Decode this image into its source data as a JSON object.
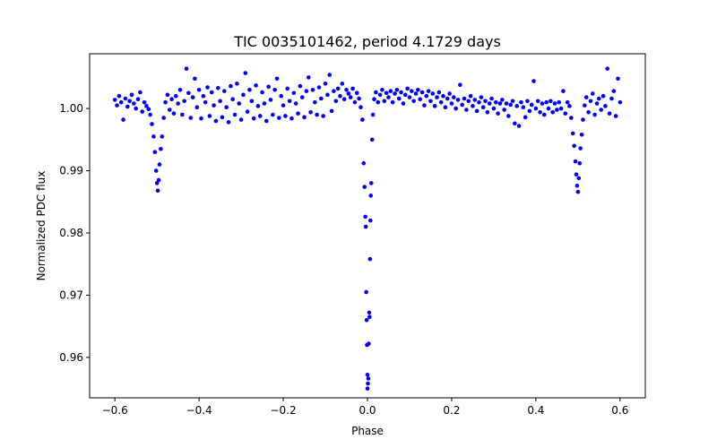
{
  "chart_data": {
    "type": "scatter",
    "title": "TIC 0035101462, period 4.1729 days",
    "xlabel": "Phase",
    "ylabel": "Normalized PDC flux",
    "xlim": [
      -0.66,
      0.66
    ],
    "ylim": [
      0.9535,
      1.0088
    ],
    "xticks": [
      -0.6,
      -0.4,
      -0.2,
      0.0,
      0.2,
      0.4,
      0.6
    ],
    "xtick_labels": [
      "−0.6",
      "−0.4",
      "−0.2",
      "0.0",
      "0.2",
      "0.4",
      "0.6"
    ],
    "yticks": [
      0.96,
      0.97,
      0.98,
      0.99,
      1.0
    ],
    "ytick_labels": [
      "0.96",
      "0.97",
      "0.98",
      "0.99",
      "1.00"
    ],
    "grid": false,
    "marker_color": "#0000ff",
    "series": [
      {
        "name": "PDC flux",
        "points": [
          [
            -0.6,
            1.0014
          ],
          [
            -0.595,
            1.0005
          ],
          [
            -0.59,
            1.002
          ],
          [
            -0.585,
            1.001
          ],
          [
            -0.58,
            0.9982
          ],
          [
            -0.575,
            1.0016
          ],
          [
            -0.57,
            1.0003
          ],
          [
            -0.565,
            1.0012
          ],
          [
            -0.56,
            1.0022
          ],
          [
            -0.555,
            1.0008
          ],
          [
            -0.55,
            1.0
          ],
          [
            -0.545,
            1.0015
          ],
          [
            -0.54,
            1.0026
          ],
          [
            -0.535,
            0.9995
          ],
          [
            -0.53,
            1.001
          ],
          [
            -0.525,
            1.0004
          ],
          [
            -0.52,
            0.9999
          ],
          [
            -0.516,
            0.999
          ],
          [
            -0.512,
            0.9975
          ],
          [
            -0.508,
            0.9955
          ],
          [
            -0.505,
            0.993
          ],
          [
            -0.502,
            0.99
          ],
          [
            -0.5,
            0.988
          ],
          [
            -0.498,
            0.9868
          ],
          [
            -0.496,
            0.9885
          ],
          [
            -0.494,
            0.991
          ],
          [
            -0.491,
            0.9935
          ],
          [
            -0.488,
            0.9955
          ],
          [
            -0.484,
            0.9985
          ],
          [
            -0.48,
            1.001
          ],
          [
            -0.475,
            1.0022
          ],
          [
            -0.47,
            0.9998
          ],
          [
            -0.465,
            1.0015
          ],
          [
            -0.46,
            0.9992
          ],
          [
            -0.455,
            1.002
          ],
          [
            -0.45,
            1.0008
          ],
          [
            -0.445,
            1.003
          ],
          [
            -0.44,
            0.999
          ],
          [
            -0.435,
            1.0012
          ],
          [
            -0.43,
            1.0064
          ],
          [
            -0.425,
            1.0025
          ],
          [
            -0.42,
            0.9985
          ],
          [
            -0.415,
            1.0018
          ],
          [
            -0.41,
            1.0048
          ],
          [
            -0.405,
            1.0002
          ],
          [
            -0.4,
            1.003
          ],
          [
            -0.395,
            0.9984
          ],
          [
            -0.39,
            1.002
          ],
          [
            -0.385,
            1.001
          ],
          [
            -0.38,
            1.0034
          ],
          [
            -0.375,
            0.9988
          ],
          [
            -0.37,
            1.0026
          ],
          [
            -0.365,
            1.0005
          ],
          [
            -0.36,
            0.998
          ],
          [
            -0.355,
            1.0033
          ],
          [
            -0.35,
            1.0012
          ],
          [
            -0.345,
            0.9986
          ],
          [
            -0.34,
            1.0028
          ],
          [
            -0.335,
            1.0002
          ],
          [
            -0.33,
            0.9978
          ],
          [
            -0.325,
            1.0036
          ],
          [
            -0.32,
            1.0015
          ],
          [
            -0.315,
            0.999
          ],
          [
            -0.31,
            1.004
          ],
          [
            -0.305,
            1.0008
          ],
          [
            -0.3,
            0.9982
          ],
          [
            -0.295,
            1.0022
          ],
          [
            -0.29,
            1.0057
          ],
          [
            -0.285,
            0.9995
          ],
          [
            -0.28,
            1.003
          ],
          [
            -0.275,
            1.0012
          ],
          [
            -0.27,
            0.9984
          ],
          [
            -0.265,
            1.0037
          ],
          [
            -0.26,
            1.0004
          ],
          [
            -0.255,
            0.9988
          ],
          [
            -0.25,
            1.0026
          ],
          [
            -0.245,
            1.0008
          ],
          [
            -0.24,
            0.998
          ],
          [
            -0.235,
            1.0035
          ],
          [
            -0.23,
            1.0014
          ],
          [
            -0.225,
            0.999
          ],
          [
            -0.22,
            1.003
          ],
          [
            -0.215,
            1.0048
          ],
          [
            -0.21,
            0.9985
          ],
          [
            -0.205,
            1.002
          ],
          [
            -0.2,
            1.0005
          ],
          [
            -0.195,
            0.9988
          ],
          [
            -0.19,
            1.0032
          ],
          [
            -0.185,
            1.0012
          ],
          [
            -0.18,
            0.9984
          ],
          [
            -0.175,
            1.0025
          ],
          [
            -0.17,
            1.0008
          ],
          [
            -0.165,
            0.9992
          ],
          [
            -0.16,
            1.0036
          ],
          [
            -0.155,
            1.0018
          ],
          [
            -0.15,
            0.9986
          ],
          [
            -0.145,
            1.0028
          ],
          [
            -0.14,
            1.005
          ],
          [
            -0.135,
            0.9994
          ],
          [
            -0.13,
            1.003
          ],
          [
            -0.125,
            1.001
          ],
          [
            -0.12,
            0.999
          ],
          [
            -0.115,
            1.0034
          ],
          [
            -0.11,
            1.0016
          ],
          [
            -0.105,
            0.9988
          ],
          [
            -0.1,
            1.004
          ],
          [
            -0.095,
            1.0022
          ],
          [
            -0.09,
            1.0054
          ],
          [
            -0.085,
            0.9996
          ],
          [
            -0.08,
            1.0028
          ],
          [
            -0.075,
            1.0012
          ],
          [
            -0.07,
            1.0032
          ],
          [
            -0.065,
            1.002
          ],
          [
            -0.06,
            1.004
          ],
          [
            -0.055,
            1.0015
          ],
          [
            -0.05,
            1.003
          ],
          [
            -0.045,
            1.0024
          ],
          [
            -0.04,
            1.0018
          ],
          [
            -0.035,
            1.0032
          ],
          [
            -0.03,
            1.001
          ],
          [
            -0.025,
            1.0025
          ],
          [
            -0.02,
            1.0016
          ],
          [
            -0.016,
            1.0002
          ],
          [
            -0.012,
            0.9982
          ],
          [
            -0.009,
            0.9912
          ],
          [
            -0.007,
            0.9874
          ],
          [
            -0.005,
            0.9826
          ],
          [
            -0.004,
            0.981
          ],
          [
            -0.003,
            0.9705
          ],
          [
            -0.002,
            0.966
          ],
          [
            -0.001,
            0.962
          ],
          [
            0.0,
            0.9572
          ],
          [
            0.0,
            0.955
          ],
          [
            0.001,
            0.9558
          ],
          [
            0.002,
            0.9566
          ],
          [
            0.003,
            0.9622
          ],
          [
            0.004,
            0.9672
          ],
          [
            0.005,
            0.9665
          ],
          [
            0.006,
            0.9758
          ],
          [
            0.007,
            0.982
          ],
          [
            0.008,
            0.986
          ],
          [
            0.009,
            0.988
          ],
          [
            0.011,
            0.995
          ],
          [
            0.013,
            0.999
          ],
          [
            0.016,
            1.0015
          ],
          [
            0.02,
            1.0026
          ],
          [
            0.025,
            1.001
          ],
          [
            0.03,
            1.0022
          ],
          [
            0.035,
            1.003
          ],
          [
            0.04,
            1.0012
          ],
          [
            0.045,
            1.0025
          ],
          [
            0.05,
            1.0018
          ],
          [
            0.055,
            1.0028
          ],
          [
            0.06,
            1.001
          ],
          [
            0.065,
            1.0024
          ],
          [
            0.07,
            1.003
          ],
          [
            0.075,
            1.0016
          ],
          [
            0.08,
            1.0026
          ],
          [
            0.085,
            1.0008
          ],
          [
            0.09,
            1.0022
          ],
          [
            0.095,
            1.0032
          ],
          [
            0.1,
            1.0018
          ],
          [
            0.105,
            1.0028
          ],
          [
            0.11,
            1.0012
          ],
          [
            0.115,
            1.0024
          ],
          [
            0.12,
            1.003
          ],
          [
            0.125,
            1.0015
          ],
          [
            0.13,
            1.0026
          ],
          [
            0.135,
            1.0005
          ],
          [
            0.14,
            1.002
          ],
          [
            0.145,
            1.0028
          ],
          [
            0.15,
            1.0012
          ],
          [
            0.155,
            1.0024
          ],
          [
            0.16,
            1.0004
          ],
          [
            0.165,
            1.0018
          ],
          [
            0.17,
            1.0026
          ],
          [
            0.175,
            1.001
          ],
          [
            0.18,
            1.002
          ],
          [
            0.185,
            1.0002
          ],
          [
            0.19,
            1.0016
          ],
          [
            0.195,
            1.0024
          ],
          [
            0.2,
            1.0008
          ],
          [
            0.205,
            1.0018
          ],
          [
            0.21,
            1.0
          ],
          [
            0.215,
            1.0014
          ],
          [
            0.22,
            1.0038
          ],
          [
            0.225,
            1.0006
          ],
          [
            0.23,
            1.0016
          ],
          [
            0.235,
            0.9998
          ],
          [
            0.24,
            1.0012
          ],
          [
            0.245,
            1.002
          ],
          [
            0.25,
            1.0004
          ],
          [
            0.255,
            1.0014
          ],
          [
            0.26,
            0.9996
          ],
          [
            0.265,
            1.001
          ],
          [
            0.27,
            1.0018
          ],
          [
            0.275,
            1.0002
          ],
          [
            0.28,
            1.0012
          ],
          [
            0.285,
            0.9994
          ],
          [
            0.29,
            1.0008
          ],
          [
            0.295,
            1.0016
          ],
          [
            0.3,
            1.0
          ],
          [
            0.305,
            1.001
          ],
          [
            0.31,
            0.9992
          ],
          [
            0.315,
            1.0008
          ],
          [
            0.32,
            1.0014
          ],
          [
            0.325,
            0.9998
          ],
          [
            0.33,
            1.0008
          ],
          [
            0.335,
            0.9988
          ],
          [
            0.34,
            1.0006
          ],
          [
            0.345,
            1.0012
          ],
          [
            0.35,
            0.9976
          ],
          [
            0.355,
            1.0004
          ],
          [
            0.36,
            0.9972
          ],
          [
            0.365,
            1.001
          ],
          [
            0.37,
            1.0002
          ],
          [
            0.375,
            0.9986
          ],
          [
            0.38,
            1.0012
          ],
          [
            0.385,
            0.9996
          ],
          [
            0.39,
            1.0006
          ],
          [
            0.395,
            1.0044
          ],
          [
            0.4,
            1.0
          ],
          [
            0.405,
            1.0012
          ],
          [
            0.41,
            0.9994
          ],
          [
            0.415,
            1.0008
          ],
          [
            0.42,
            0.999
          ],
          [
            0.425,
            1.001
          ],
          [
            0.43,
            1.0
          ],
          [
            0.435,
            1.0012
          ],
          [
            0.44,
            0.9994
          ],
          [
            0.445,
            1.0008
          ],
          [
            0.45,
            0.9998
          ],
          [
            0.455,
            1.001
          ],
          [
            0.46,
            1.0
          ],
          [
            0.465,
            1.0028
          ],
          [
            0.47,
            0.9992
          ],
          [
            0.475,
            1.001
          ],
          [
            0.48,
            1.0004
          ],
          [
            0.484,
            0.9985
          ],
          [
            0.488,
            0.996
          ],
          [
            0.491,
            0.994
          ],
          [
            0.494,
            0.9915
          ],
          [
            0.496,
            0.9894
          ],
          [
            0.498,
            0.9876
          ],
          [
            0.5,
            0.9866
          ],
          [
            0.502,
            0.9888
          ],
          [
            0.504,
            0.9912
          ],
          [
            0.506,
            0.9936
          ],
          [
            0.509,
            0.9958
          ],
          [
            0.512,
            0.9982
          ],
          [
            0.516,
            1.0005
          ],
          [
            0.52,
            1.0018
          ],
          [
            0.525,
            0.9994
          ],
          [
            0.53,
            1.0012
          ],
          [
            0.535,
            1.0024
          ],
          [
            0.54,
            0.999
          ],
          [
            0.545,
            1.0008
          ],
          [
            0.55,
            1.0016
          ],
          [
            0.555,
            0.9998
          ],
          [
            0.56,
            1.002
          ],
          [
            0.565,
            1.0004
          ],
          [
            0.57,
            1.0064
          ],
          [
            0.575,
            0.9992
          ],
          [
            0.58,
            1.0016
          ],
          [
            0.585,
            1.0028
          ],
          [
            0.59,
            0.9988
          ],
          [
            0.595,
            1.0048
          ],
          [
            0.6,
            1.001
          ]
        ]
      }
    ]
  }
}
